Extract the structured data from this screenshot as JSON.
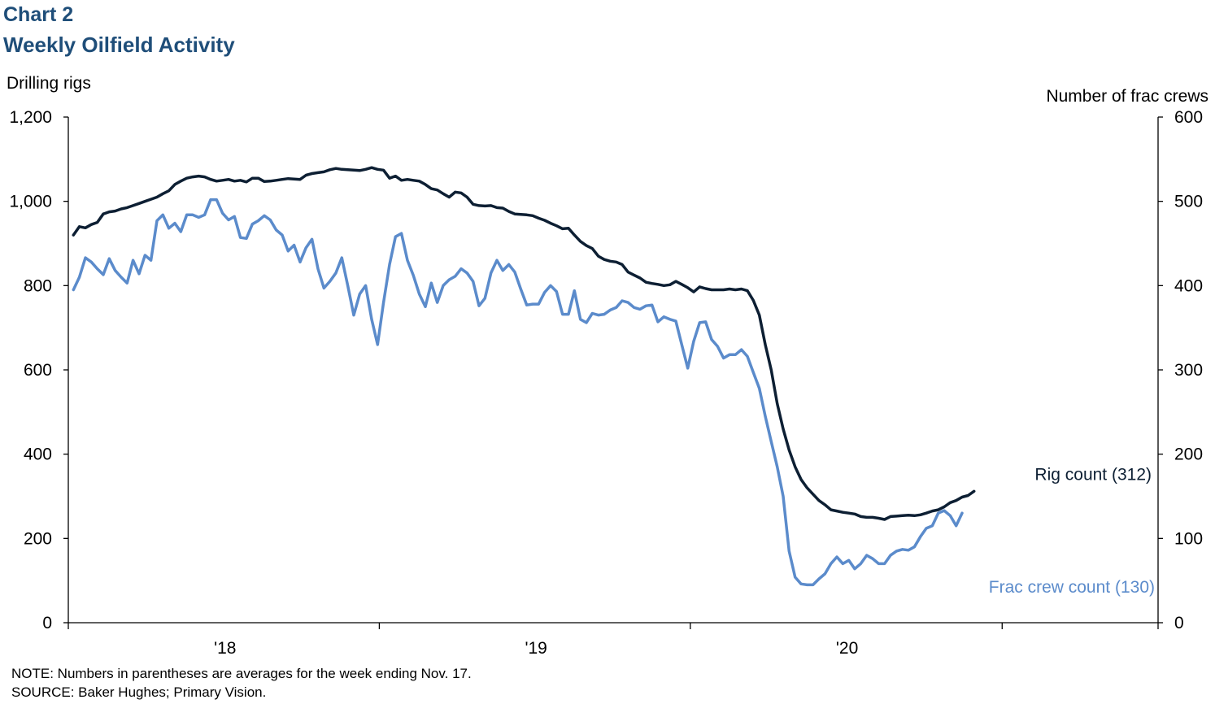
{
  "header": {
    "label": "Chart 2",
    "title": "Weekly Oilfield Activity"
  },
  "notes": {
    "note": "NOTE: Numbers in parentheses are averages for the week ending Nov. 17.",
    "source": "SOURCE:  Baker Hughes;  Primary Vision."
  },
  "colors": {
    "rig": "#0d1f33",
    "frac": "#5b8bcb",
    "title": "#1f4e79"
  },
  "chart_data": {
    "type": "line",
    "title": "Weekly Oilfield Activity",
    "ylabel_left": "Drilling rigs",
    "ylabel_right": "Number of frac crews",
    "ylim_left": [
      0,
      1200
    ],
    "ylim_right": [
      0,
      600
    ],
    "yticks_left": [
      "0",
      "200",
      "400",
      "600",
      "800",
      "1,000",
      "1,200"
    ],
    "yticks_right": [
      "0",
      "100",
      "200",
      "300",
      "400",
      "500",
      "600"
    ],
    "xlim": [
      "2017-07-01",
      "2020-12-31"
    ],
    "xticks": [
      {
        "label": "'18",
        "date": "2018-01-01"
      },
      {
        "label": "'19",
        "date": "2019-01-01"
      },
      {
        "label": "'20",
        "date": "2020-01-01"
      }
    ],
    "legend": "inline labels at line ends",
    "grid": false,
    "series": [
      {
        "name": "Rig count (312)",
        "axis": "left",
        "start_date": "2017-07-07",
        "interval_days": 7,
        "values": [
          920,
          940,
          937,
          945,
          950,
          970,
          975,
          977,
          982,
          985,
          990,
          995,
          1000,
          1005,
          1010,
          1018,
          1025,
          1040,
          1048,
          1055,
          1058,
          1060,
          1058,
          1052,
          1048,
          1050,
          1052,
          1048,
          1050,
          1046,
          1055,
          1055,
          1047,
          1048,
          1050,
          1052,
          1054,
          1053,
          1052,
          1062,
          1066,
          1068,
          1070,
          1075,
          1078,
          1076,
          1075,
          1074,
          1073,
          1076,
          1080,
          1076,
          1074,
          1055,
          1060,
          1050,
          1052,
          1050,
          1048,
          1040,
          1030,
          1027,
          1018,
          1010,
          1022,
          1020,
          1010,
          993,
          990,
          989,
          990,
          985,
          984,
          976,
          970,
          969,
          968,
          966,
          960,
          955,
          948,
          942,
          935,
          936,
          920,
          905,
          895,
          888,
          870,
          862,
          858,
          856,
          850,
          832,
          825,
          818,
          808,
          805,
          803,
          800,
          802,
          810,
          803,
          795,
          785,
          797,
          793,
          790,
          790,
          790,
          792,
          790,
          792,
          788,
          765,
          730,
          660,
          600,
          520,
          460,
          410,
          370,
          340,
          320,
          305,
          290,
          280,
          268,
          265,
          262,
          260,
          258,
          252,
          250,
          250,
          248,
          245,
          252,
          253,
          254,
          255,
          254,
          256,
          260,
          265,
          268,
          275,
          285,
          290,
          298,
          302,
          312
        ]
      },
      {
        "name": "Frac crew count (130)",
        "axis": "right",
        "start_date": "2017-07-07",
        "interval_days": 7,
        "values": [
          395,
          410,
          433,
          428,
          420,
          413,
          432,
          418,
          410,
          403,
          430,
          414,
          436,
          430,
          477,
          484,
          468,
          474,
          464,
          484,
          484,
          481,
          484,
          502,
          502,
          486,
          478,
          482,
          457,
          456,
          473,
          477,
          483,
          478,
          466,
          460,
          441,
          448,
          428,
          445,
          455,
          420,
          397,
          405,
          415,
          433,
          400,
          365,
          390,
          400,
          360,
          330,
          380,
          425,
          458,
          462,
          430,
          412,
          390,
          375,
          403,
          380,
          400,
          407,
          411,
          420,
          415,
          405,
          376,
          385,
          415,
          430,
          418,
          425,
          416,
          396,
          377,
          378,
          378,
          392,
          400,
          393,
          366,
          366,
          394,
          360,
          356,
          367,
          365,
          366,
          371,
          374,
          382,
          380,
          374,
          372,
          376,
          377,
          357,
          363,
          360,
          358,
          330,
          302,
          334,
          356,
          357,
          336,
          328,
          314,
          318,
          318,
          324,
          316,
          297,
          278,
          245,
          215,
          185,
          150,
          85,
          54,
          46,
          45,
          45,
          52,
          58,
          70,
          78,
          70,
          74,
          64,
          70,
          80,
          76,
          70,
          70,
          80,
          85,
          87,
          86,
          90,
          102,
          112,
          115,
          130,
          133,
          127,
          115,
          130
        ]
      }
    ]
  }
}
